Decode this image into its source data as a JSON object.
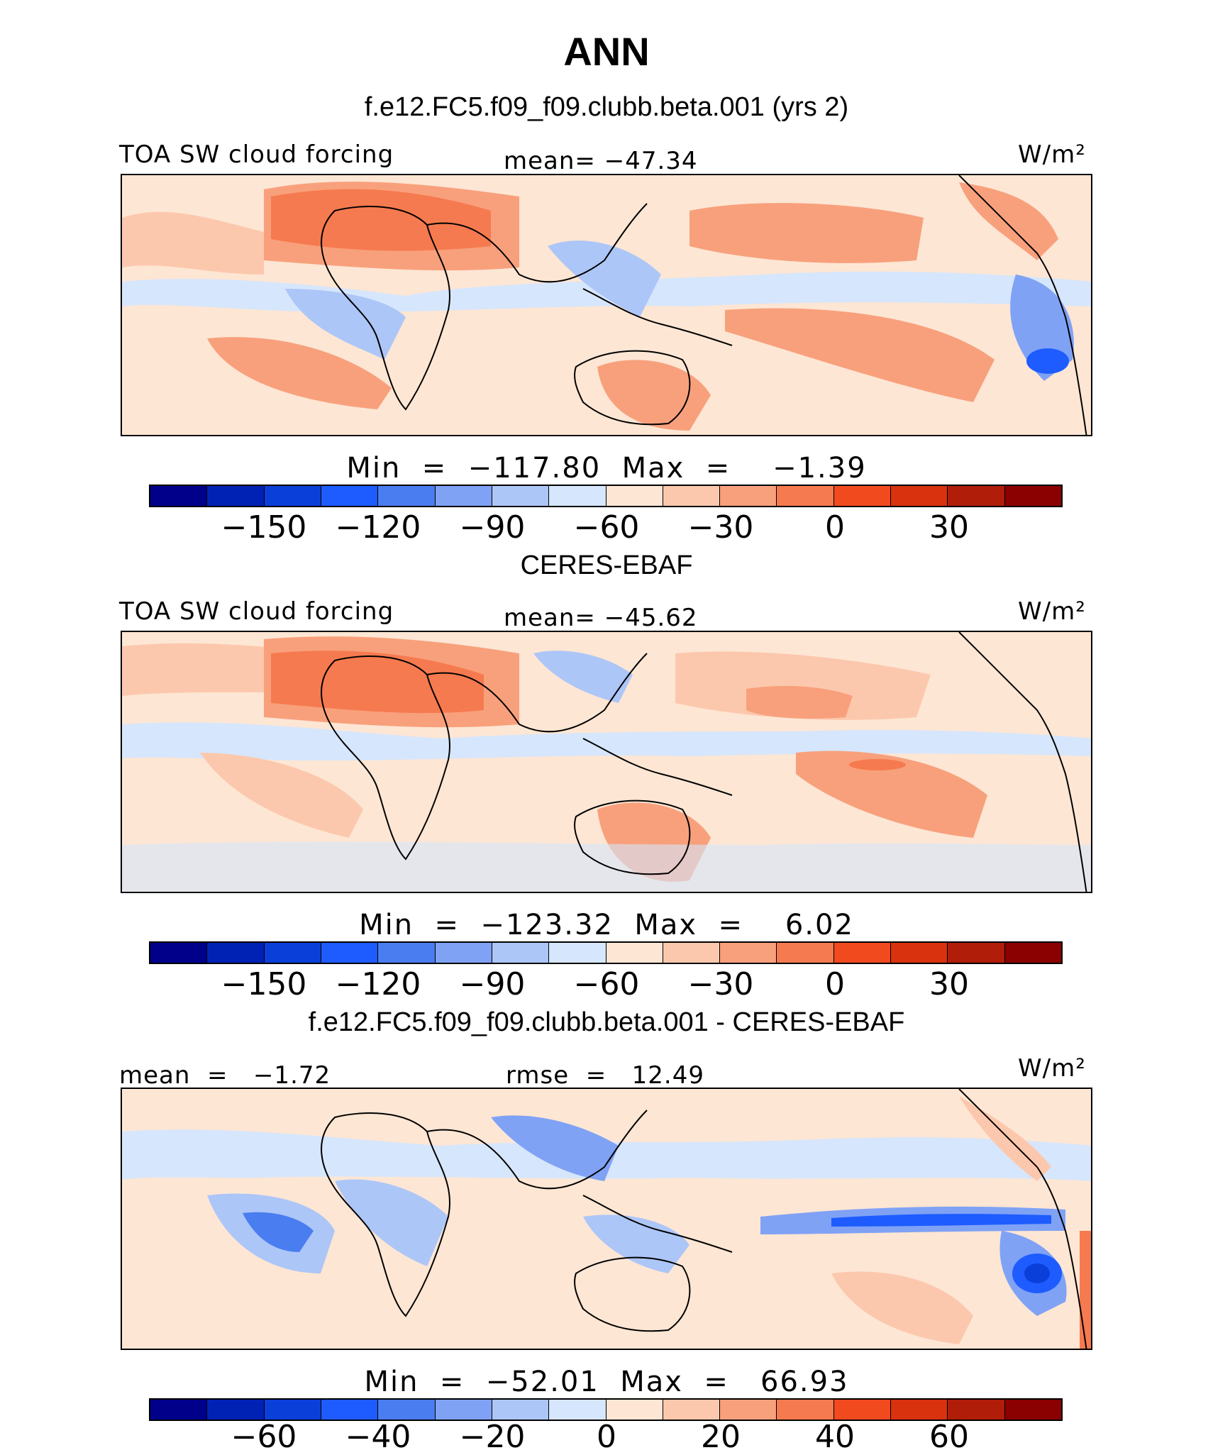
{
  "title": "ANN",
  "panels": [
    {
      "header": "f.e12.FC5.f09_f09.clubb.beta.001 (yrs 2)",
      "left_label": "TOA SW cloud forcing",
      "center_label": "mean= −47.34",
      "units": "W/m²",
      "minmax": "Min  =  −117.80  Max  =    −1.39",
      "colorbar_ticks": [
        "−150",
        "−120",
        "−90",
        "−60",
        "−30",
        "0",
        "30"
      ]
    },
    {
      "header": "CERES-EBAF",
      "left_label": "TOA SW cloud forcing",
      "center_label": "mean= −45.62",
      "units": "W/m²",
      "minmax": "Min  =  −123.32  Max  =    6.02",
      "colorbar_ticks": [
        "−150",
        "−120",
        "−90",
        "−60",
        "−30",
        "0",
        "30"
      ]
    },
    {
      "header": "f.e12.FC5.f09_f09.clubb.beta.001 - CERES-EBAF",
      "left_label": "mean  =   −1.72",
      "center_label": "rmse  =   12.49",
      "units": "W/m²",
      "minmax": "Min  =  −52.01  Max  =   66.93",
      "colorbar_ticks": [
        "−60",
        "−40",
        "−20",
        "0",
        "20",
        "40",
        "60"
      ]
    }
  ],
  "colors": {
    "palette": [
      "#00008b",
      "#0022b4",
      "#0a3fd9",
      "#1e5cff",
      "#4a7df0",
      "#7fa2f5",
      "#adc6f8",
      "#d6e6fc",
      "#fde6d4",
      "#fcc8ad",
      "#f8a07c",
      "#f67a4f",
      "#f24a1f",
      "#d8320e",
      "#b01d08",
      "#8b0000"
    ]
  }
}
